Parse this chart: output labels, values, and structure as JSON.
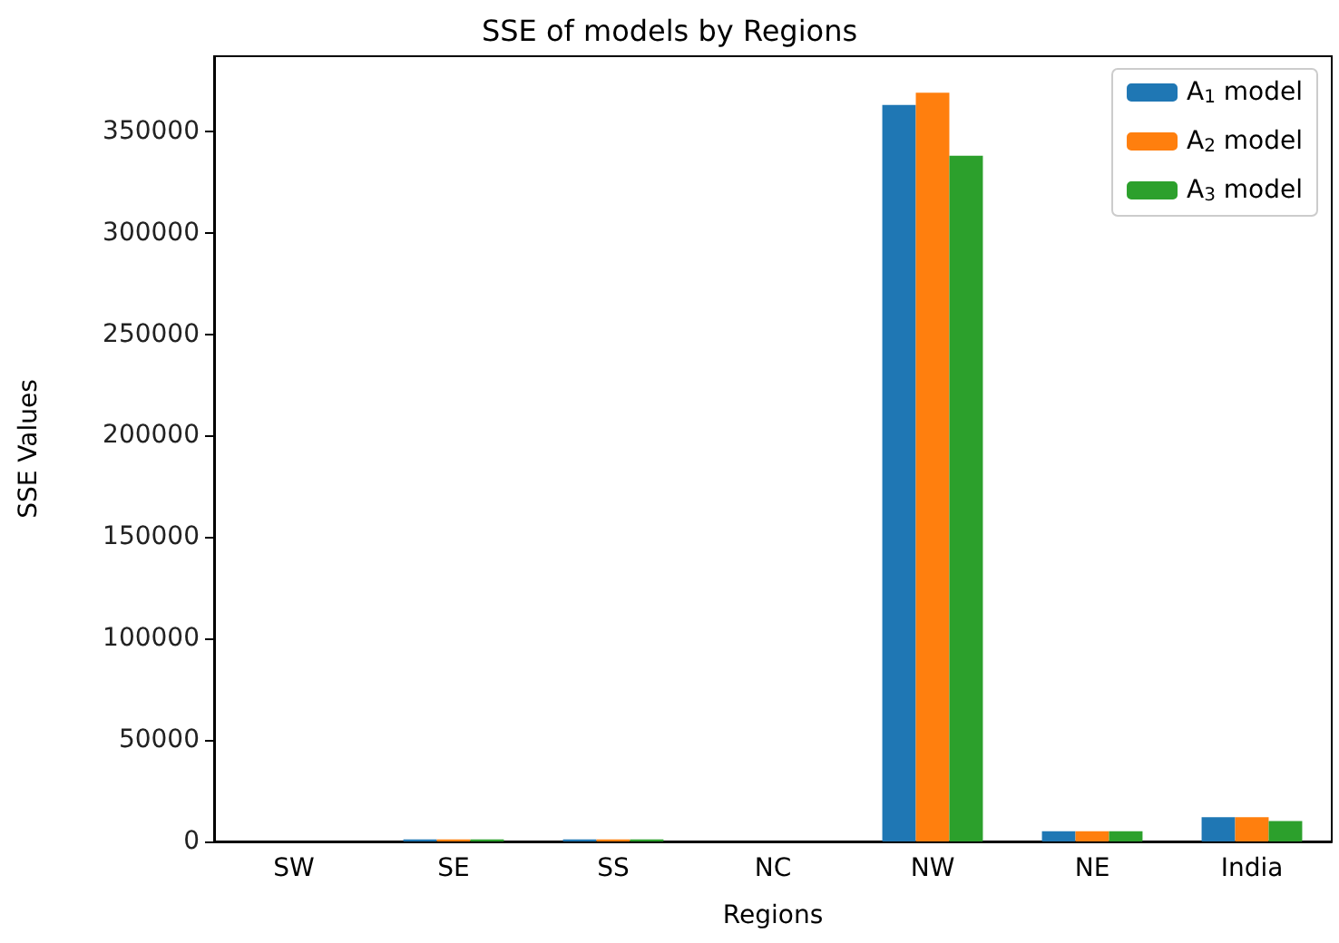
{
  "chart_data": {
    "type": "bar",
    "title": "SSE of models by Regions",
    "xlabel": "Regions",
    "ylabel": "SSE Values",
    "categories": [
      "SW",
      "SE",
      "SS",
      "NC",
      "NW",
      "NE",
      "India"
    ],
    "series": [
      {
        "name": "A$_{1}$ model",
        "color": "#1f77b4",
        "values": [
          0,
          1000,
          1000,
          0,
          363000,
          5000,
          12000
        ]
      },
      {
        "name": "A$_{2}$ model",
        "color": "#ff7f0e",
        "values": [
          0,
          1000,
          1000,
          0,
          369000,
          5000,
          12000
        ]
      },
      {
        "name": "A$_{3}$ model",
        "color": "#2ca02c",
        "values": [
          0,
          1000,
          1000,
          0,
          338000,
          5000,
          10000
        ]
      }
    ],
    "ylim": [
      0,
      387000
    ],
    "yticks": [
      0,
      50000,
      100000,
      150000,
      200000,
      250000,
      300000,
      350000
    ],
    "grid": false,
    "legend": "top right"
  }
}
